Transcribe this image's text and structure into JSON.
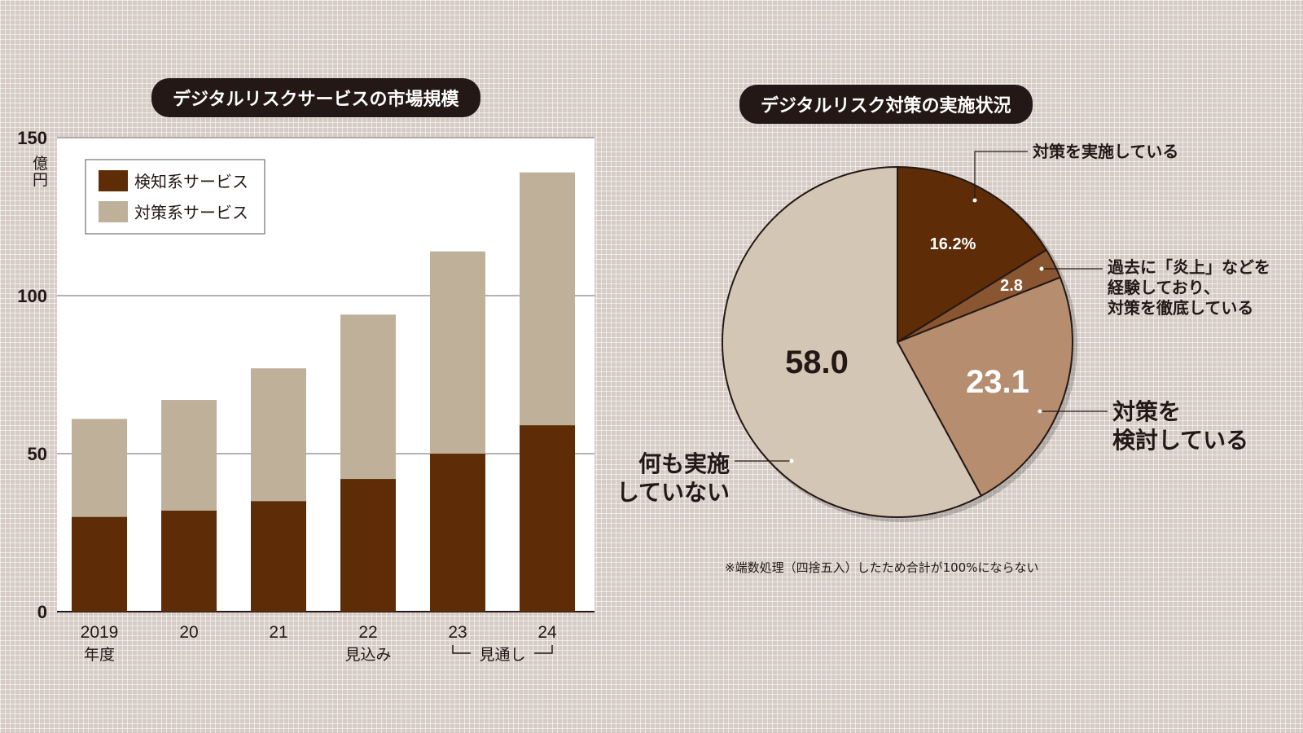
{
  "chart_data": [
    {
      "type": "bar",
      "stacked": true,
      "title": "デジタルリスクサービスの市場規模",
      "ylabel": "億円",
      "ylim": [
        0,
        150
      ],
      "yticks": [
        "0",
        "50",
        "100",
        "150"
      ],
      "categories": [
        "2019",
        "20",
        "21",
        "22",
        "23",
        "24"
      ],
      "category_sublabels": [
        "年度",
        "",
        "",
        "見込み",
        "",
        ""
      ],
      "bracket_label": "見通し",
      "legend_placement": "top-left",
      "grid": true,
      "series": [
        {
          "name": "検知系サービス",
          "color": "#5e2c06",
          "values": [
            30,
            32,
            35,
            42,
            50,
            59
          ]
        },
        {
          "name": "対策系サービス",
          "color": "#bfb09a",
          "values": [
            31,
            35,
            42,
            52,
            64,
            80
          ]
        }
      ]
    },
    {
      "type": "pie",
      "title": "デジタルリスク対策の実施状況",
      "unit": "%",
      "slices": [
        {
          "label": "対策を実施している",
          "value": 16.2,
          "value_text": "16.2%",
          "color": "#5e2c06",
          "text_color": "#ffffff"
        },
        {
          "label": "過去に「炎上」などを\n経験しており、\n対策を徹底している",
          "value": 2.8,
          "value_text": "2.8",
          "color": "#8a5531",
          "text_color": "#ffffff"
        },
        {
          "label": "対策を\n検討している",
          "value": 23.1,
          "value_text": "23.1",
          "color": "#b68d6e",
          "text_color": "#ffffff"
        },
        {
          "label": "何も実施\nしていない",
          "value": 58.0,
          "value_text": "58.0",
          "color": "#d4c6b5",
          "text_color": "#231815"
        }
      ],
      "note": "※端数処理（四捨五入）したため合計が100%にならない"
    }
  ]
}
